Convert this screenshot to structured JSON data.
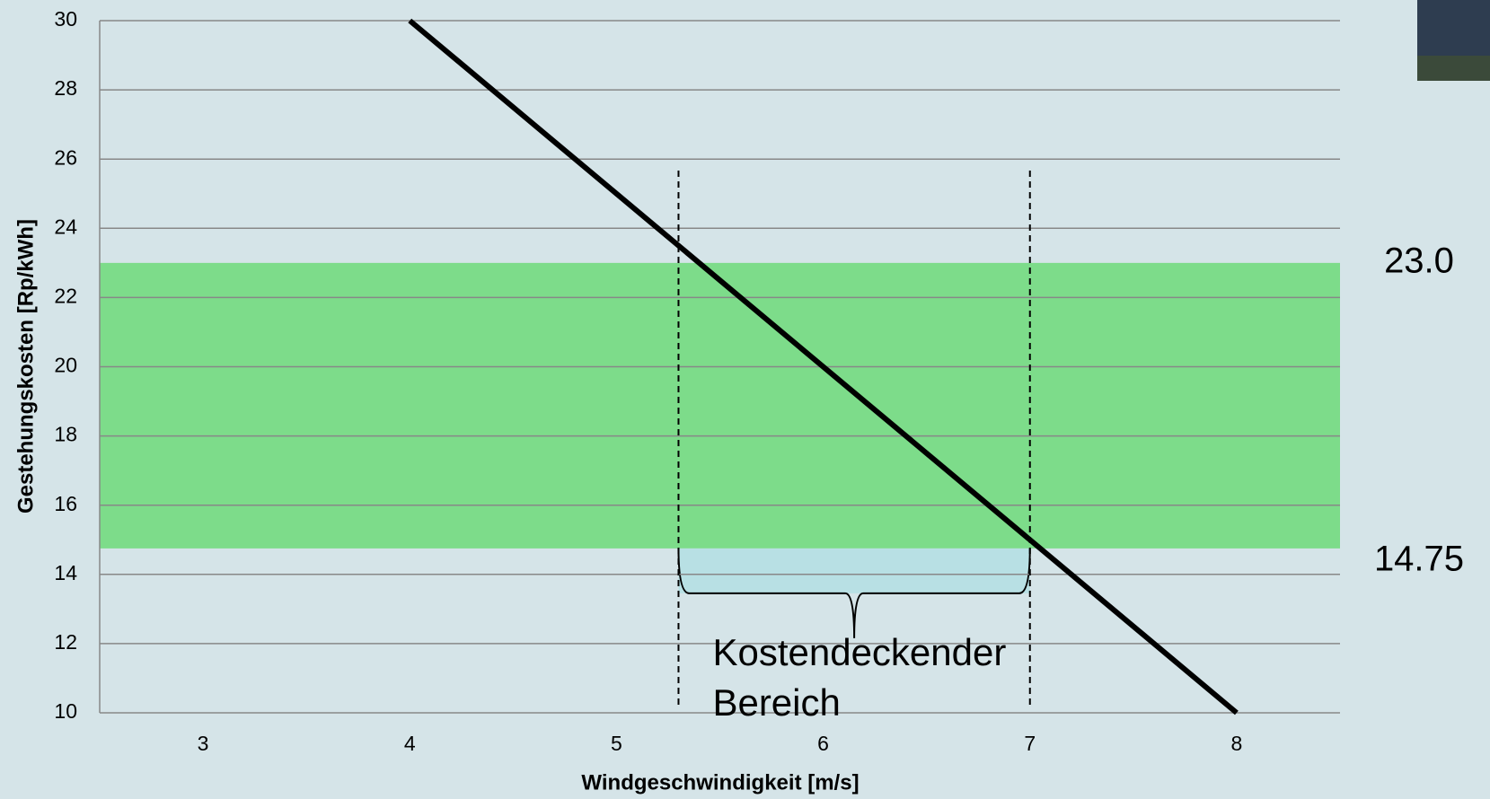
{
  "chart_data": {
    "type": "line",
    "x_label": "Windgeschwindigkeit [m/s]",
    "y_label": "Gestehungskosten [Rp/kWh]",
    "x": [
      4,
      8
    ],
    "values": [
      30,
      10
    ],
    "color": "#000000",
    "xlim": [
      2.5,
      8.5
    ],
    "xticks": [
      3,
      4,
      5,
      6,
      7,
      8
    ],
    "ylim": [
      10,
      30
    ],
    "yticks": [
      10,
      12,
      14,
      16,
      18,
      20,
      22,
      24,
      26,
      28,
      30
    ],
    "grid": true,
    "band": {
      "values": [
        14.75,
        23.0
      ],
      "value_labels": [
        "14.75",
        "23.0"
      ],
      "color": "#7ddc8a"
    },
    "markers_x": [
      5.3,
      7.0
    ],
    "annotation": [
      "Kostendeckender",
      "Bereich"
    ]
  }
}
